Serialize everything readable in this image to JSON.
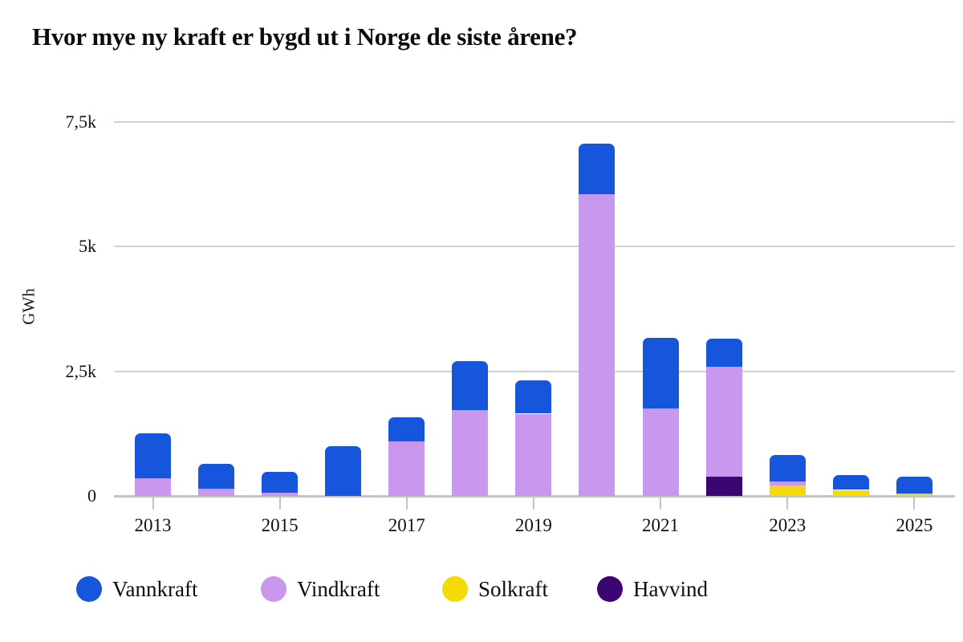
{
  "title": "Hvor mye ny kraft er bygd ut i Norge de siste årene?",
  "chart_data": {
    "type": "bar",
    "stacked": true,
    "title": "Hvor mye ny kraft er bygd ut i Norge de siste årene?",
    "ylabel": "GWh",
    "xlabel": "",
    "ylim": [
      0,
      7500
    ],
    "grid": "horizontal",
    "legend_position": "bottom",
    "categories": [
      "2013",
      "2014",
      "2015",
      "2016",
      "2017",
      "2018",
      "2019",
      "2020",
      "2021",
      "2022",
      "2023",
      "2024",
      "2025"
    ],
    "series": [
      {
        "name": "Vannkraft",
        "color": "#1556DC",
        "values": [
          900,
          500,
          430,
          1000,
          480,
          990,
          670,
          1020,
          1420,
          560,
          530,
          300,
          330
        ]
      },
      {
        "name": "Vindkraft",
        "color": "#C998EE",
        "values": [
          350,
          150,
          60,
          0,
          1100,
          1720,
          1650,
          6050,
          1750,
          2210,
          80,
          0,
          0
        ]
      },
      {
        "name": "Solkraft",
        "color": "#F4DB07",
        "values": [
          0,
          0,
          0,
          0,
          0,
          0,
          0,
          0,
          0,
          0,
          210,
          120,
          50
        ]
      },
      {
        "name": "Havvind",
        "color": "#3B0572",
        "values": [
          0,
          0,
          0,
          0,
          0,
          0,
          0,
          0,
          0,
          380,
          0,
          0,
          0
        ]
      }
    ],
    "stack_order_bottom_to_top": [
      "Havvind",
      "Solkraft",
      "Vindkraft",
      "Vannkraft"
    ],
    "yticks": [
      {
        "value": 0,
        "label": "0"
      },
      {
        "value": 2500,
        "label": "2,5k"
      },
      {
        "value": 5000,
        "label": "5k"
      },
      {
        "value": 7500,
        "label": "7,5k"
      }
    ],
    "xtick_labels": [
      "2013",
      "2015",
      "2017",
      "2019",
      "2021",
      "2023",
      "2025"
    ]
  },
  "colors": {
    "background": "#ffffff",
    "gridline": "#d2d2d2",
    "axis_line": "#c3c3c3",
    "text": "#0d0d0d"
  }
}
